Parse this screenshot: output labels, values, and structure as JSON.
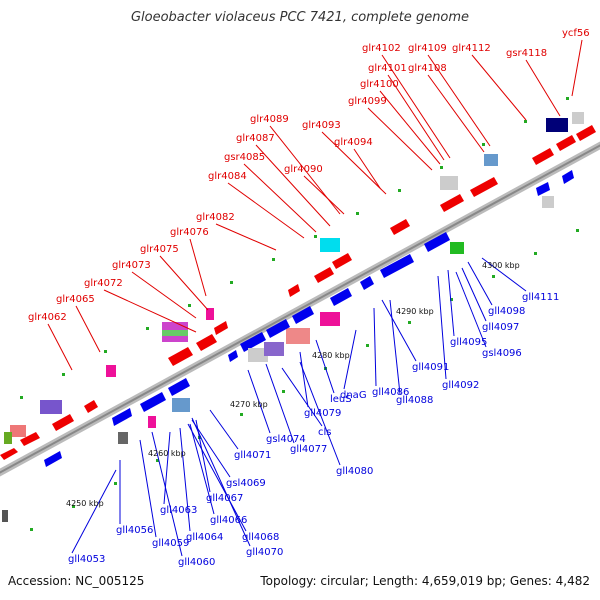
{
  "title": "Gloeobacter violaceus PCC 7421, complete genome",
  "footer": {
    "accession": "Accession: NC_005125",
    "summary": "Topology: circular; Length: 4,659,019 bp; Genes: 4,482"
  },
  "scale_labels": [
    "4250 kbp",
    "4260 kbp",
    "4270 kbp",
    "4280 kbp",
    "4290 kbp",
    "4300 kbp"
  ],
  "colors": {
    "forward": "#ee0000",
    "reverse": "#0000ee",
    "forward_label": "#e00000",
    "reverse_label": "#0000dd",
    "backbone": "#999999"
  },
  "forward_genes": [
    "glr4062",
    "glr4065",
    "glr4072",
    "glr4073",
    "glr4075",
    "glr4076",
    "glr4082",
    "glr4084",
    "gsr4085",
    "glr4087",
    "glr4089",
    "glr4090",
    "glr4093",
    "glr4094",
    "glr4099",
    "glr4100",
    "glr4101",
    "glr4102",
    "glr4108",
    "glr4109",
    "glr4112",
    "gsr4118",
    "ycf56"
  ],
  "reverse_genes": [
    "gll4053",
    "gll4056",
    "gll4059",
    "gll4060",
    "gll4063",
    "gll4064",
    "gll4066",
    "gll4067",
    "gll4068",
    "gsl4069",
    "gll4070",
    "gll4071",
    "gsl4074",
    "gll4077",
    "cls",
    "gll4079",
    "gll4080",
    "leuS",
    "dnaG",
    "gll4086",
    "gll4088",
    "gll4091",
    "gll4092",
    "gll4095",
    "gsl4096",
    "gll4097",
    "gll4098",
    "gll4111"
  ]
}
